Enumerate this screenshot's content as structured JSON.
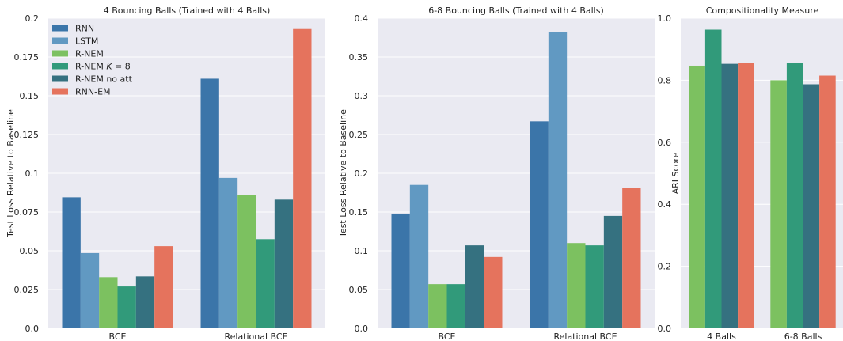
{
  "colors": {
    "RNN": "#3b75a9",
    "LSTM": "#6199c2",
    "R-NEM": "#7cc160",
    "R-NEM K = 8": "#319a7a",
    "R-NEM no att": "#357180",
    "RNN-EM": "#e5735d",
    "axes_bg": "#eaeaf2",
    "grid": "#ffffff"
  },
  "legend_labels": [
    "RNN",
    "LSTM",
    "R-NEM",
    "R-NEM K = 8",
    "R-NEM no att",
    "RNN-EM"
  ],
  "chart_data": [
    {
      "type": "bar",
      "title": "4 Bouncing Balls (Trained with 4 Balls)",
      "xlabel": "",
      "ylabel": "Test Loss Relative to Baseline",
      "categories": [
        "BCE",
        "Relational BCE"
      ],
      "ylim": [
        0,
        0.2
      ],
      "yticks": [
        "0.0",
        "0.025",
        "0.05",
        "0.075",
        "0.1",
        "0.125",
        "0.15",
        "0.175",
        "0.2"
      ],
      "legend": "top-left",
      "grid": true,
      "series": [
        {
          "name": "RNN",
          "values": [
            0.0845,
            0.161
          ]
        },
        {
          "name": "LSTM",
          "values": [
            0.0485,
            0.097
          ]
        },
        {
          "name": "R-NEM",
          "values": [
            0.033,
            0.086
          ]
        },
        {
          "name": "R-NEM K = 8",
          "values": [
            0.027,
            0.0575
          ]
        },
        {
          "name": "R-NEM no att",
          "values": [
            0.0335,
            0.083
          ]
        },
        {
          "name": "RNN-EM",
          "values": [
            0.053,
            0.193
          ]
        }
      ]
    },
    {
      "type": "bar",
      "title": "6-8 Bouncing Balls (Trained with 4 Balls)",
      "xlabel": "",
      "ylabel": "Test Loss Relative to Baseline",
      "categories": [
        "BCE",
        "Relational BCE"
      ],
      "ylim": [
        0,
        0.4
      ],
      "yticks": [
        "0.0",
        "0.05",
        "0.1",
        "0.15",
        "0.2",
        "0.25",
        "0.3",
        "0.35",
        "0.4"
      ],
      "grid": true,
      "series": [
        {
          "name": "RNN",
          "values": [
            0.148,
            0.267
          ]
        },
        {
          "name": "LSTM",
          "values": [
            0.185,
            0.382
          ]
        },
        {
          "name": "R-NEM",
          "values": [
            0.057,
            0.11
          ]
        },
        {
          "name": "R-NEM K = 8",
          "values": [
            0.057,
            0.107
          ]
        },
        {
          "name": "R-NEM no att",
          "values": [
            0.107,
            0.145
          ]
        },
        {
          "name": "RNN-EM",
          "values": [
            0.092,
            0.181
          ]
        }
      ]
    },
    {
      "type": "bar",
      "title": "Compositionality Measure",
      "xlabel": "",
      "ylabel": "ARI Score",
      "categories": [
        "4 Balls",
        "6-8 Balls"
      ],
      "ylim": [
        0,
        1.0
      ],
      "yticks": [
        "0.0",
        "0.2",
        "0.4",
        "0.6",
        "0.8",
        "1.0"
      ],
      "grid": true,
      "series": [
        {
          "name": "R-NEM",
          "values": [
            0.847,
            0.8
          ]
        },
        {
          "name": "R-NEM K = 8",
          "values": [
            0.963,
            0.855
          ]
        },
        {
          "name": "R-NEM no att",
          "values": [
            0.853,
            0.787
          ]
        },
        {
          "name": "RNN-EM",
          "values": [
            0.857,
            0.815
          ]
        }
      ]
    }
  ]
}
